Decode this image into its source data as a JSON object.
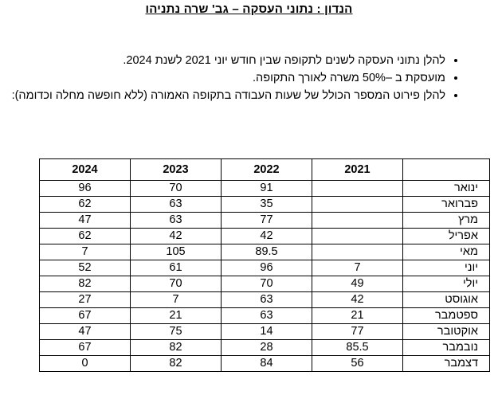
{
  "title": "הנדון : נתוני העסקה – גב' שרה נתניהו",
  "bullets": [
    "להלן נתוני העסקה לשנים לתקופה שבין חודש יוני 2021 לשנת 2024.",
    "מועסקת ב –50% משרה לאורך התקופה.",
    "להלן פירוט המספר הכולל של שעות העבודה בתקופה האמורה (ללא חופשה מחלה וכדומה):"
  ],
  "table": {
    "headers": [
      "2024",
      "2023",
      "2022",
      "2021",
      ""
    ],
    "rows": [
      {
        "month": "ינואר",
        "y2024": "96",
        "y2023": "70",
        "y2022": "91",
        "y2021": ""
      },
      {
        "month": "פברואר",
        "y2024": "62",
        "y2023": "63",
        "y2022": "35",
        "y2021": ""
      },
      {
        "month": "מרץ",
        "y2024": "47",
        "y2023": "63",
        "y2022": "77",
        "y2021": ""
      },
      {
        "month": "אפריל",
        "y2024": "62",
        "y2023": "42",
        "y2022": "42",
        "y2021": ""
      },
      {
        "month": "מאי",
        "y2024": "7",
        "y2023": "105",
        "y2022": "89.5",
        "y2021": ""
      },
      {
        "month": "יוני",
        "y2024": "52",
        "y2023": "61",
        "y2022": "96",
        "y2021": "7"
      },
      {
        "month": "יולי",
        "y2024": "82",
        "y2023": "70",
        "y2022": "70",
        "y2021": "49"
      },
      {
        "month": "אוגוסט",
        "y2024": "27",
        "y2023": "7",
        "y2022": "63",
        "y2021": "42"
      },
      {
        "month": "ספטמבר",
        "y2024": "67",
        "y2023": "21",
        "y2022": "63",
        "y2021": "21"
      },
      {
        "month": "אוקטובר",
        "y2024": "47",
        "y2023": "75",
        "y2022": "14",
        "y2021": "77"
      },
      {
        "month": "נובמבר",
        "y2024": "67",
        "y2023": "82",
        "y2022": "28",
        "y2021": "85.5"
      },
      {
        "month": "דצמבר",
        "y2024": "0",
        "y2023": "82",
        "y2022": "84",
        "y2021": "56"
      }
    ]
  }
}
